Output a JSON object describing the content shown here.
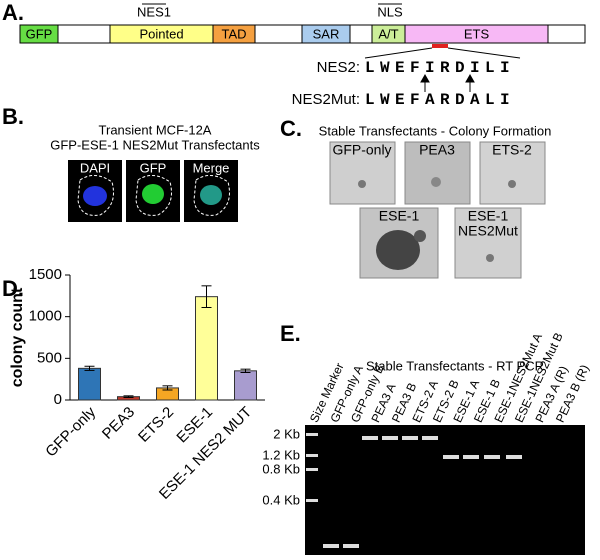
{
  "panel_a": {
    "label": "A.",
    "domains": [
      "GFP",
      "Pointed",
      "TAD",
      "SAR",
      "A/T",
      "ETS"
    ],
    "domain_colors": [
      "#66dd44",
      "#ffff88",
      "#f5a040",
      "#aaccee",
      "#ccee99",
      "#f7b8f5"
    ],
    "site_labels": [
      "NES1",
      "NLS"
    ],
    "sequences": [
      {
        "name": "NES2:",
        "residues": [
          "L",
          "W",
          "E",
          "F",
          "I",
          "R",
          "D",
          "I",
          "L",
          "I"
        ],
        "residue_colors": [
          "#e02020",
          "#000000",
          "#000000",
          "#000000",
          "#e02020",
          "#000000",
          "#000000",
          "#e02020",
          "#000000",
          "#e02020"
        ]
      },
      {
        "name": "NES2Mut:",
        "residues": [
          "L",
          "W",
          "E",
          "F",
          "A",
          "R",
          "D",
          "A",
          "L",
          "I"
        ],
        "residue_colors": [
          "#e02020",
          "#000000",
          "#000000",
          "#000000",
          "#5b9bd5",
          "#000000",
          "#000000",
          "#5b9bd5",
          "#000000",
          "#e02020"
        ]
      }
    ]
  },
  "panel_b": {
    "label": "B.",
    "title_lines": [
      "Transient MCF-12A",
      "GFP-ESE-1 NES2Mut Transfectants"
    ],
    "channels": [
      "DAPI",
      "GFP",
      "Merge"
    ]
  },
  "panel_c": {
    "label": "C.",
    "title": "Stable Transfectants - Colony Formation",
    "images": [
      [
        "GFP-only"
      ],
      [
        "PEA3"
      ],
      [
        "ETS-2"
      ],
      [
        "ESE-1"
      ],
      [
        "ESE-1",
        "NES2Mut"
      ]
    ]
  },
  "panel_d_label": "D.",
  "chart_data": {
    "type": "bar",
    "y_label": "colony count",
    "categories": [
      "GFP-only",
      "PEA3",
      "ETS-2",
      "ESE-1",
      "ESE-1 NES2 MUT"
    ],
    "values": [
      380,
      40,
      145,
      1240,
      350
    ],
    "errors": [
      25,
      10,
      25,
      130,
      20
    ],
    "colors": [
      "#2e75b6",
      "#c0392b",
      "#f5a623",
      "#ffff99",
      "#a89ccf"
    ],
    "ylim": [
      0,
      1500
    ],
    "yticks": [
      0,
      500,
      1000,
      1500
    ]
  },
  "panel_e": {
    "label": "E.",
    "title": "Stable Transfectants - RT PCR",
    "lanes": [
      "Size Marker",
      "GFP-only A",
      "GFP-only B",
      "PEA3 A",
      "PEA3 B",
      "ETS-2 A",
      "ETS-2 B",
      "ESE-1 A",
      "ESE-1 B",
      "ESE-1NES2Mut A",
      "ESE-1NES2Mut B",
      "PEA3 A (R)",
      "PEA3 B (R)"
    ],
    "size_labels": [
      "2 Kb",
      "1.2 Kb",
      "0.8 Kb",
      "0.4 Kb"
    ]
  }
}
